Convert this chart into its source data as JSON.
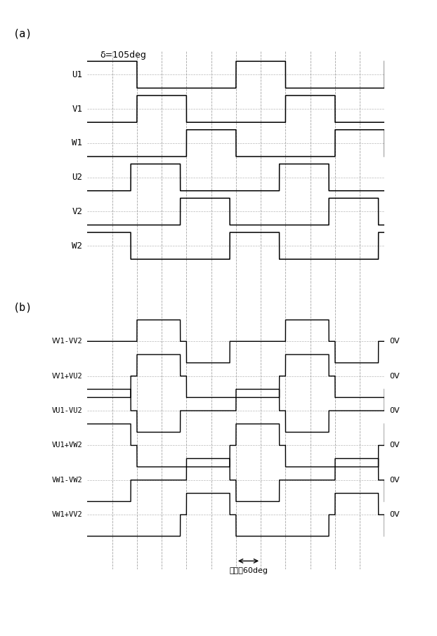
{
  "title_a": "(a)",
  "title_b": "(b)",
  "delta_label": "δ=105deg",
  "bottom_label": "電気角60deg",
  "ov_label": "0V",
  "panel_a_labels": [
    "U1",
    "V1",
    "W1",
    "U2",
    "V2",
    "W2"
  ],
  "panel_b_labels": [
    "VV1-VV2",
    "VV1+VU2",
    "VU1-VU2",
    "VU1+VW2",
    "VW1-VW2",
    "VW1+VV2"
  ],
  "bg_color": "#ffffff",
  "line_color": "#000000",
  "grid_color": "#999999"
}
